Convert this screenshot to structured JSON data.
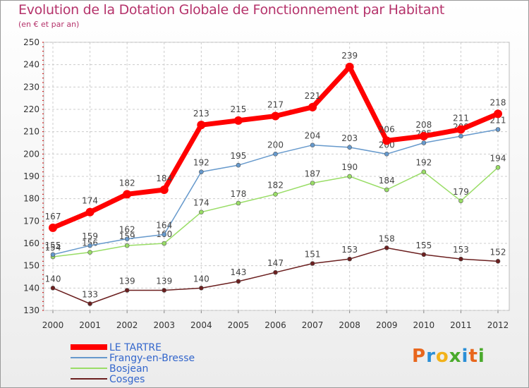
{
  "title": "Evolution de la Dotation Globale de Fonctionnement par Habitant",
  "subtitle": "(en € et par an)",
  "logo": {
    "letters": [
      {
        "ch": "P",
        "color": "#e8661c"
      },
      {
        "ch": "r",
        "color": "#2b8fd6"
      },
      {
        "ch": "o",
        "color": "#f2b21a"
      },
      {
        "ch": "x",
        "color": "#4aaa2c"
      },
      {
        "ch": "i",
        "color": "#2b8fd6"
      },
      {
        "ch": "t",
        "color": "#e8661c"
      },
      {
        "ch": "i",
        "color": "#4aaa2c"
      }
    ]
  },
  "chart_data": {
    "type": "line",
    "title": "Evolution de la Dotation Globale de Fonctionnement par Habitant",
    "subtitle": "(en € et par an)",
    "xlabel": "",
    "ylabel": "",
    "ylim": [
      130,
      250
    ],
    "yticks": [
      130,
      140,
      150,
      160,
      170,
      180,
      190,
      200,
      210,
      220,
      230,
      240,
      250
    ],
    "x": [
      "2000",
      "2001",
      "2002",
      "2003",
      "2004",
      "2005",
      "2006",
      "2007",
      "2008",
      "2009",
      "2010",
      "2011",
      "2012"
    ],
    "grid": true,
    "legend_position": "bottom-left",
    "series": [
      {
        "name": "Cosges",
        "color": "#6b1f1f",
        "values": [
          140,
          133,
          139,
          139,
          140,
          143,
          147,
          151,
          153,
          158,
          155,
          153,
          152
        ]
      },
      {
        "name": "Bosjean",
        "color": "#99dd66",
        "values": [
          154,
          156,
          159,
          160,
          174,
          178,
          182,
          187,
          190,
          184,
          192,
          179,
          194
        ]
      },
      {
        "name": "Frangy-en-Bresse",
        "color": "#6699cc",
        "values": [
          155,
          159,
          162,
          164,
          192,
          195,
          200,
          204,
          203,
          200,
          205,
          208,
          211
        ]
      },
      {
        "name": "LE TARTRE",
        "color": "#ff0000",
        "values": [
          167,
          174,
          182,
          184,
          213,
          215,
          217,
          221,
          239,
          206,
          208,
          211,
          218
        ]
      }
    ],
    "legend_order": [
      "LE TARTRE",
      "Frangy-en-Bresse",
      "Bosjean",
      "Cosges"
    ]
  }
}
